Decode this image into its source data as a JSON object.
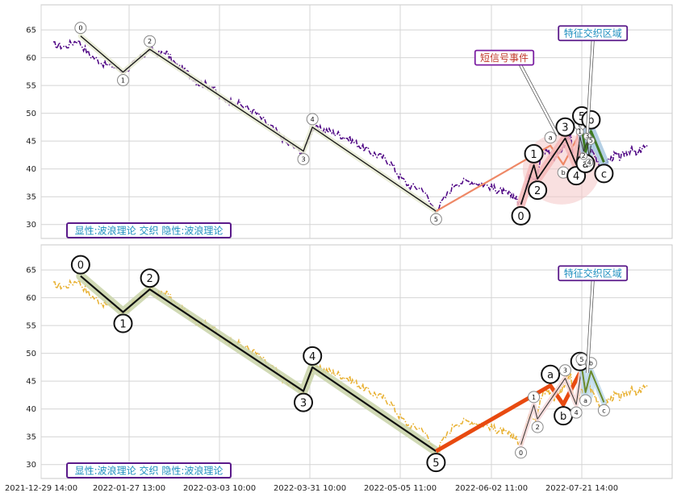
{
  "chart_data": [
    {
      "type": "line",
      "panel": "top",
      "title": "",
      "xlabel": "",
      "ylabel": "",
      "ylim": [
        27.5,
        69.5
      ],
      "yticks": [
        30,
        35,
        40,
        45,
        50,
        55,
        60,
        65
      ],
      "xlim": [
        "2021-12-29",
        "2022-09-02"
      ],
      "grid": true,
      "price_color": "#4b0082",
      "price_anchors": [
        [
          "2022-01-02",
          62.3
        ],
        [
          "2022-01-06",
          62.0
        ],
        [
          "2022-01-10",
          63.2
        ],
        [
          "2022-01-14",
          60.5
        ],
        [
          "2022-01-19",
          58.8
        ],
        [
          "2022-01-23",
          58.2
        ],
        [
          "2022-01-25",
          57.3
        ],
        [
          "2022-01-28",
          58.6
        ],
        [
          "2022-02-01",
          60.2
        ],
        [
          "2022-02-04",
          61.4
        ],
        [
          "2022-02-08",
          60.5
        ],
        [
          "2022-02-10",
          61.1
        ],
        [
          "2022-02-14",
          58.8
        ],
        [
          "2022-02-18",
          57.5
        ],
        [
          "2022-02-23",
          55.4
        ],
        [
          "2022-02-28",
          54.9
        ],
        [
          "2022-03-04",
          52.4
        ],
        [
          "2022-03-08",
          52.0
        ],
        [
          "2022-03-14",
          50.2
        ],
        [
          "2022-03-17",
          48.5
        ],
        [
          "2022-03-21",
          46.5
        ],
        [
          "2022-03-24",
          44.5
        ],
        [
          "2022-03-29",
          43.0
        ],
        [
          "2022-04-01",
          47.2
        ],
        [
          "2022-04-06",
          47.0
        ],
        [
          "2022-04-10",
          46.4
        ],
        [
          "2022-04-14",
          45.7
        ],
        [
          "2022-04-18",
          44.6
        ],
        [
          "2022-04-22",
          43.4
        ],
        [
          "2022-04-26",
          42.5
        ],
        [
          "2022-05-01",
          41.3
        ],
        [
          "2022-05-05",
          38.5
        ],
        [
          "2022-05-08",
          36.8
        ],
        [
          "2022-05-12",
          36.5
        ],
        [
          "2022-05-14",
          34.0
        ],
        [
          "2022-05-16",
          32.5
        ],
        [
          "2022-05-19",
          35.0
        ],
        [
          "2022-05-22",
          37.5
        ],
        [
          "2022-05-26",
          37.8
        ],
        [
          "2022-05-30",
          37.4
        ],
        [
          "2022-06-03",
          36.5
        ],
        [
          "2022-06-07",
          36.0
        ],
        [
          "2022-06-10",
          35.6
        ],
        [
          "2022-06-14",
          35.2
        ],
        [
          "2022-06-18",
          33.5
        ],
        [
          "2022-06-21",
          37.5
        ],
        [
          "2022-06-23",
          39.0
        ],
        [
          "2022-06-26",
          38.5
        ],
        [
          "2022-06-29",
          42.0
        ],
        [
          "2022-07-02",
          43.5
        ],
        [
          "2022-07-06",
          42.0
        ],
        [
          "2022-07-10",
          43.5
        ],
        [
          "2022-07-13",
          45.5
        ],
        [
          "2022-07-15",
          45.7
        ],
        [
          "2022-07-17",
          41.0
        ],
        [
          "2022-07-20",
          42.5
        ],
        [
          "2022-07-23",
          44.5
        ],
        [
          "2022-07-26",
          43.5
        ],
        [
          "2022-07-29",
          42.0
        ],
        [
          "2022-08-01",
          40.0
        ],
        [
          "2022-08-04",
          41.5
        ],
        [
          "2022-08-08",
          42.5
        ],
        [
          "2022-08-11",
          42.0
        ],
        [
          "2022-08-14",
          43.0
        ],
        [
          "2022-08-17",
          43.5
        ],
        [
          "2022-08-20",
          42.5
        ],
        [
          "2022-08-23",
          44.0
        ],
        [
          "2022-08-26",
          43.5
        ]
      ],
      "waves": [
        {
          "points": [
            [
              "2022-01-11",
              63.9
            ],
            [
              "2022-01-25",
              57.4
            ],
            [
              "2022-02-04",
              61.5
            ],
            [
              "2022-03-29",
              43.2
            ],
            [
              "2022-04-01",
              47.5
            ],
            [
              "2022-05-16",
              32.4
            ]
          ],
          "labels": [
            "0",
            "1",
            "2",
            "3",
            "4",
            "5"
          ],
          "size": "small",
          "color": "#1a1a1a",
          "halo": "#e6ead2",
          "width": 1.4
        },
        {
          "points": [
            [
              "2022-05-16",
              32.4
            ],
            [
              "2022-07-04",
              44.2
            ],
            [
              "2022-07-11",
              40.8
            ],
            [
              "2022-07-20",
              46.5
            ]
          ],
          "labels": [
            "",
            "a",
            "b",
            "c"
          ],
          "size": "small",
          "color": "#ee8866",
          "halo": "",
          "width": 2.2
        },
        {
          "points": [
            [
              "2022-06-18",
              33.6
            ],
            [
              "2022-06-25",
              40.7
            ],
            [
              "2022-06-27",
              38.2
            ],
            [
              "2022-07-12",
              45.5
            ],
            [
              "2022-07-18",
              40.8
            ],
            [
              "2022-07-21",
              47.5
            ]
          ],
          "labels": [
            "0",
            "1",
            "2",
            "3",
            "4",
            "5"
          ],
          "size": "big",
          "color": "#111111",
          "halo": "#f6b8b8",
          "width": 1.8
        },
        {
          "points": [
            [
              "2022-07-21",
              47.5
            ],
            [
              "2022-07-23",
              43.0
            ],
            [
              "2022-07-26",
              46.8
            ],
            [
              "2022-08-02",
              41.2
            ]
          ],
          "labels": [
            "",
            "a",
            "b",
            "c"
          ],
          "size": "big",
          "color": "#3f7a22",
          "halo": "#a8c8e0",
          "width": 3
        },
        {
          "points": [
            [
              "2022-07-18",
              40.8
            ],
            [
              "2022-07-20",
              45.8
            ],
            [
              "2022-07-22",
              43.2
            ],
            [
              "2022-07-24",
              45.0
            ],
            [
              "2022-07-25",
              42.0
            ],
            [
              "2022-07-26",
              44.2
            ]
          ],
          "labels": [
            "",
            "1",
            "2",
            "3",
            "4",
            "5"
          ],
          "size": "tiny",
          "color": "#333333",
          "halo": "",
          "width": 1
        }
      ],
      "highlight": {
        "center": [
          "2022-07-10",
          40.0
        ],
        "rx_days": 21,
        "ry": 6.4,
        "color": "#f4c6c6"
      },
      "highlight_small": {
        "center": [
          "2022-07-24",
          44.3
        ],
        "rx_days": 4,
        "ry": 3.2,
        "color": "#a9d0e8"
      },
      "annotations": [
        {
          "text": "短信号事件",
          "anchor": [
            "2022-06-09",
            60.0
          ],
          "arrow_to": [
            "2022-07-08",
            46.0
          ],
          "color": "#c0392b",
          "box": "#7b1fa2"
        },
        {
          "text": "特征交织区域",
          "anchor": [
            "2022-07-27",
            64.4
          ],
          "arrow_to": [
            "2022-07-24",
            46.5
          ],
          "color": "#1f8fbf",
          "box": "#5a1a8a"
        }
      ],
      "caption": "显性:波浪理论 交织 隐性:波浪理论"
    },
    {
      "type": "line",
      "panel": "bottom",
      "title": "",
      "xlabel": "",
      "ylabel": "",
      "ylim": [
        27.5,
        69.5
      ],
      "yticks": [
        30,
        35,
        40,
        45,
        50,
        55,
        60,
        65
      ],
      "xlim": [
        "2021-12-29",
        "2022-09-02"
      ],
      "grid": true,
      "price_color": "#e8b030",
      "price_anchors": [
        [
          "2022-01-02",
          62.3
        ],
        [
          "2022-01-06",
          62.0
        ],
        [
          "2022-01-10",
          63.2
        ],
        [
          "2022-01-14",
          60.5
        ],
        [
          "2022-01-19",
          58.8
        ],
        [
          "2022-01-23",
          58.2
        ],
        [
          "2022-01-25",
          57.3
        ],
        [
          "2022-01-28",
          58.6
        ],
        [
          "2022-02-01",
          60.2
        ],
        [
          "2022-02-04",
          61.4
        ],
        [
          "2022-02-08",
          60.5
        ],
        [
          "2022-02-10",
          61.1
        ],
        [
          "2022-02-14",
          58.8
        ],
        [
          "2022-02-18",
          57.5
        ],
        [
          "2022-02-23",
          55.4
        ],
        [
          "2022-02-28",
          54.9
        ],
        [
          "2022-03-04",
          52.4
        ],
        [
          "2022-03-08",
          52.0
        ],
        [
          "2022-03-14",
          50.2
        ],
        [
          "2022-03-17",
          48.5
        ],
        [
          "2022-03-21",
          46.5
        ],
        [
          "2022-03-24",
          44.5
        ],
        [
          "2022-03-29",
          43.0
        ],
        [
          "2022-04-01",
          47.2
        ],
        [
          "2022-04-06",
          47.0
        ],
        [
          "2022-04-10",
          46.4
        ],
        [
          "2022-04-14",
          45.7
        ],
        [
          "2022-04-18",
          44.6
        ],
        [
          "2022-04-22",
          43.4
        ],
        [
          "2022-04-26",
          42.5
        ],
        [
          "2022-05-01",
          41.3
        ],
        [
          "2022-05-05",
          38.5
        ],
        [
          "2022-05-08",
          36.8
        ],
        [
          "2022-05-12",
          36.5
        ],
        [
          "2022-05-14",
          34.0
        ],
        [
          "2022-05-16",
          32.5
        ],
        [
          "2022-05-19",
          35.0
        ],
        [
          "2022-05-22",
          37.5
        ],
        [
          "2022-05-26",
          37.8
        ],
        [
          "2022-05-30",
          37.4
        ],
        [
          "2022-06-03",
          36.5
        ],
        [
          "2022-06-07",
          36.0
        ],
        [
          "2022-06-10",
          35.6
        ],
        [
          "2022-06-14",
          35.2
        ],
        [
          "2022-06-18",
          33.5
        ],
        [
          "2022-06-21",
          37.5
        ],
        [
          "2022-06-23",
          39.0
        ],
        [
          "2022-06-26",
          38.5
        ],
        [
          "2022-06-29",
          42.0
        ],
        [
          "2022-07-02",
          43.5
        ],
        [
          "2022-07-06",
          42.0
        ],
        [
          "2022-07-10",
          43.5
        ],
        [
          "2022-07-13",
          45.5
        ],
        [
          "2022-07-15",
          45.7
        ],
        [
          "2022-07-17",
          41.0
        ],
        [
          "2022-07-20",
          42.5
        ],
        [
          "2022-07-23",
          44.5
        ],
        [
          "2022-07-26",
          43.5
        ],
        [
          "2022-07-29",
          42.0
        ],
        [
          "2022-08-01",
          40.0
        ],
        [
          "2022-08-04",
          41.5
        ],
        [
          "2022-08-08",
          42.5
        ],
        [
          "2022-08-11",
          42.0
        ],
        [
          "2022-08-14",
          43.0
        ],
        [
          "2022-08-17",
          43.5
        ],
        [
          "2022-08-20",
          42.5
        ],
        [
          "2022-08-23",
          44.0
        ],
        [
          "2022-08-26",
          43.5
        ]
      ],
      "waves": [
        {
          "points": [
            [
              "2022-01-11",
              63.9
            ],
            [
              "2022-01-25",
              57.4
            ],
            [
              "2022-02-04",
              61.5
            ],
            [
              "2022-03-29",
              43.2
            ],
            [
              "2022-04-01",
              47.5
            ],
            [
              "2022-05-16",
              32.4
            ]
          ],
          "labels": [
            "0",
            "1",
            "2",
            "3",
            "4",
            "5"
          ],
          "size": "big",
          "color": "#111111",
          "halo": "#c9d4a8",
          "width": 2.2
        },
        {
          "points": [
            [
              "2022-05-16",
              32.4
            ],
            [
              "2022-07-04",
              44.2
            ],
            [
              "2022-07-11",
              40.8
            ],
            [
              "2022-07-20",
              46.5
            ]
          ],
          "labels": [
            "",
            "a",
            "b",
            "c"
          ],
          "size": "big",
          "color": "#e84a10",
          "halo": "",
          "width": 5
        },
        {
          "points": [
            [
              "2022-06-18",
              33.6
            ],
            [
              "2022-06-25",
              40.7
            ],
            [
              "2022-06-27",
              38.2
            ],
            [
              "2022-07-12",
              45.5
            ],
            [
              "2022-07-18",
              40.8
            ],
            [
              "2022-07-21",
              47.5
            ]
          ],
          "labels": [
            "0",
            "1",
            "2",
            "3",
            "4",
            "5"
          ],
          "size": "small",
          "color": "#333333",
          "halo": "#f6d8d8",
          "width": 1
        },
        {
          "points": [
            [
              "2022-07-21",
              47.5
            ],
            [
              "2022-07-23",
              43.0
            ],
            [
              "2022-07-26",
              46.8
            ],
            [
              "2022-08-02",
              41.2
            ]
          ],
          "labels": [
            "",
            "a",
            "b",
            "c"
          ],
          "size": "small",
          "color": "#6a8a2a",
          "halo": "#bcd8ea",
          "width": 2
        }
      ],
      "highlight_small": {
        "center": [
          "2022-07-24",
          44.3
        ],
        "rx_days": 4,
        "ry": 3.2,
        "color": "#bcd8ea"
      },
      "annotations": [
        {
          "text": "特征交织区域",
          "anchor": [
            "2022-07-27",
            64.4
          ],
          "arrow_to": [
            "2022-07-24",
            46.5
          ],
          "color": "#1f8fbf",
          "box": "#5a1a8a"
        }
      ],
      "caption": "显性:波浪理论 交织 隐性:波浪理论"
    }
  ],
  "x_axis": {
    "ticks": [
      {
        "label": "2021-12-29 14:00",
        "date": "2021-12-29"
      },
      {
        "label": "2022-01-27 13:00",
        "date": "2022-01-27"
      },
      {
        "label": "2022-03-03 10:00",
        "date": "2022-03-03"
      },
      {
        "label": "2022-03-31 10:00",
        "date": "2022-03-31"
      },
      {
        "label": "2022-05-05 11:00",
        "date": "2022-05-05"
      },
      {
        "label": "2022-06-02 11:00",
        "date": "2022-06-02"
      },
      {
        "label": "2022-07-21 14:00",
        "date": "2022-07-21"
      }
    ]
  }
}
